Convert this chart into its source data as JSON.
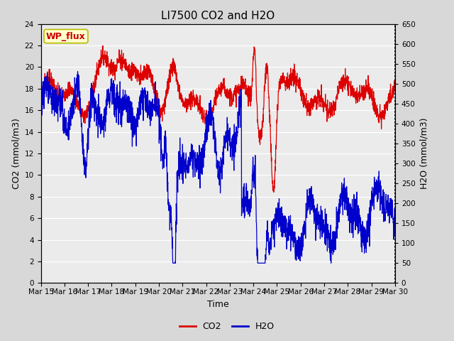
{
  "title": "LI7500 CO2 and H2O",
  "xlabel": "Time",
  "ylabel_left": "CO2 (mmol/m3)",
  "ylabel_right": "H2O (mmol/m3)",
  "annotation": "WP_flux",
  "x_start": 15,
  "x_end": 30,
  "x_ticks": [
    15,
    16,
    17,
    18,
    19,
    20,
    21,
    22,
    23,
    24,
    25,
    26,
    27,
    28,
    29,
    30
  ],
  "x_tick_labels": [
    "Mar 15",
    "Mar 16",
    "Mar 17",
    "Mar 18",
    "Mar 19",
    "Mar 20",
    "Mar 21",
    "Mar 22",
    "Mar 23",
    "Mar 24",
    "Mar 25",
    "Mar 26",
    "Mar 27",
    "Mar 28",
    "Mar 29",
    "Mar 30"
  ],
  "ylim_left": [
    0,
    24
  ],
  "ylim_right": [
    0,
    650
  ],
  "yticks_left": [
    0,
    2,
    4,
    6,
    8,
    10,
    12,
    14,
    16,
    18,
    20,
    22,
    24
  ],
  "yticks_right": [
    0,
    50,
    100,
    150,
    200,
    250,
    300,
    350,
    400,
    450,
    500,
    550,
    600,
    650
  ],
  "co2_color": "#dd0000",
  "h2o_color": "#0000cc",
  "bg_color": "#d8d8d8",
  "plot_bg_color": "#ebebeb",
  "annotation_bg": "#ffffcc",
  "annotation_border": "#bbbb00",
  "annotation_text_color": "#cc0000",
  "grid_color": "#ffffff",
  "title_fontsize": 11,
  "axis_fontsize": 9,
  "tick_fontsize": 7.5,
  "legend_fontsize": 9,
  "linewidth": 0.9
}
